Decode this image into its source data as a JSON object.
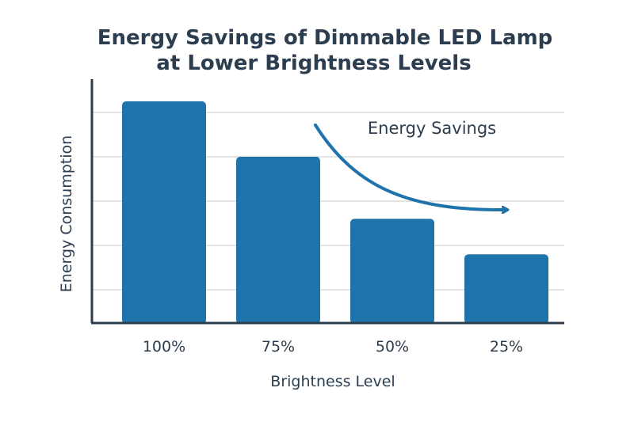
{
  "chart_data": {
    "type": "bar",
    "title_lines": [
      "Energy Savings of Dimmable LED Lamp",
      "at Lower Brightness Levels"
    ],
    "xlabel": "Brightness Level",
    "ylabel": "Energy Consumption",
    "categories": [
      "100%",
      "75%",
      "50%",
      "25%"
    ],
    "values": [
      100,
      75,
      47,
      31
    ],
    "ylim": [
      0,
      110
    ],
    "grid": true,
    "y_ticks_labeled": false,
    "annotation": "Energy Savings",
    "colors": {
      "bar": "#1e73ab",
      "arrow": "#1e73ab",
      "grid": "#dcdcdc",
      "axis": "#2b3d4f",
      "text": "#2b3d4f"
    }
  }
}
